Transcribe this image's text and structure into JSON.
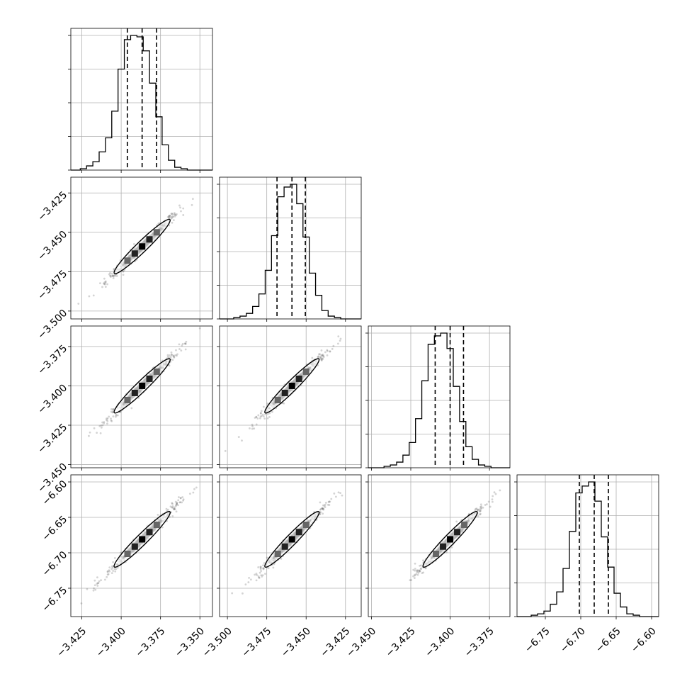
{
  "chart_data": {
    "type": "corner",
    "grid": true,
    "quantile_lines": "dashed",
    "parameters": [
      {
        "range": [
          -3.432,
          -3.342
        ],
        "ticks": [
          -3.425,
          -3.4,
          -3.375,
          -3.35
        ],
        "tick_labels": [
          "−3.425",
          "−3.400",
          "−3.375",
          "−3.350"
        ],
        "quantiles": [
          -3.3961,
          -3.3867,
          -3.3775
        ],
        "hist_edges": [
          -3.426,
          -3.422,
          -3.418,
          -3.414,
          -3.41,
          -3.406,
          -3.402,
          -3.398,
          -3.394,
          -3.39,
          -3.386,
          -3.382,
          -3.378,
          -3.374,
          -3.37,
          -3.366,
          -3.362,
          -3.358
        ],
        "hist_values": [
          0.01,
          0.03,
          0.06,
          0.13,
          0.23,
          0.42,
          0.72,
          0.93,
          0.96,
          0.95,
          0.85,
          0.62,
          0.38,
          0.18,
          0.07,
          0.02,
          0.01
        ]
      },
      {
        "range": [
          -3.505,
          -3.415
        ],
        "ticks": [
          -3.5,
          -3.475,
          -3.45,
          -3.425
        ],
        "tick_labels": [
          "−3.500",
          "−3.475",
          "−3.450",
          "−3.425"
        ],
        "quantiles": [
          -3.4685,
          -3.459,
          -3.4505
        ],
        "hist_edges": [
          -3.496,
          -3.492,
          -3.488,
          -3.484,
          -3.48,
          -3.476,
          -3.472,
          -3.468,
          -3.464,
          -3.46,
          -3.456,
          -3.452,
          -3.448,
          -3.444,
          -3.44,
          -3.436,
          -3.432,
          -3.428
        ],
        "hist_values": [
          0.01,
          0.02,
          0.04,
          0.09,
          0.18,
          0.35,
          0.6,
          0.88,
          0.95,
          0.97,
          0.83,
          0.59,
          0.33,
          0.17,
          0.06,
          0.02,
          0.01
        ]
      },
      {
        "range": [
          -3.452,
          -3.362
        ],
        "ticks": [
          -3.45,
          -3.425,
          -3.4,
          -3.375
        ],
        "tick_labels": [
          "−3.450",
          "−3.425",
          "−3.400",
          "−3.375"
        ],
        "quantiles": [
          -3.4095,
          -3.4,
          -3.3915
        ],
        "hist_edges": [
          -3.442,
          -3.438,
          -3.434,
          -3.43,
          -3.426,
          -3.422,
          -3.418,
          -3.414,
          -3.41,
          -3.406,
          -3.402,
          -3.398,
          -3.394,
          -3.39,
          -3.386,
          -3.382,
          -3.378,
          -3.374
        ],
        "hist_values": [
          0.01,
          0.02,
          0.04,
          0.09,
          0.18,
          0.35,
          0.62,
          0.88,
          0.94,
          0.96,
          0.85,
          0.58,
          0.33,
          0.15,
          0.06,
          0.02,
          0.01
        ]
      },
      {
        "range": [
          -6.79,
          -6.59
        ],
        "ticks": [
          -6.75,
          -6.7,
          -6.65,
          -6.6
        ],
        "tick_labels": [
          "−6.75",
          "−6.70",
          "−6.65",
          "−6.60"
        ],
        "quantiles": [
          -6.702,
          -6.681,
          -6.661
        ],
        "hist_edges": [
          -6.77,
          -6.761,
          -6.752,
          -6.743,
          -6.734,
          -6.725,
          -6.716,
          -6.707,
          -6.698,
          -6.689,
          -6.68,
          -6.671,
          -6.662,
          -6.653,
          -6.644,
          -6.635,
          -6.626,
          -6.617
        ],
        "hist_values": [
          0.01,
          0.02,
          0.04,
          0.09,
          0.18,
          0.35,
          0.62,
          0.9,
          0.95,
          0.98,
          0.84,
          0.58,
          0.36,
          0.17,
          0.07,
          0.02,
          0.01
        ]
      }
    ]
  }
}
